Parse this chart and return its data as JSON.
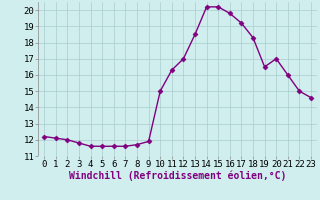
{
  "x": [
    0,
    1,
    2,
    3,
    4,
    5,
    6,
    7,
    8,
    9,
    10,
    11,
    12,
    13,
    14,
    15,
    16,
    17,
    18,
    19,
    20,
    21,
    22,
    23
  ],
  "y": [
    12.2,
    12.1,
    12.0,
    11.8,
    11.6,
    11.6,
    11.6,
    11.6,
    11.7,
    11.9,
    15.0,
    16.3,
    17.0,
    18.5,
    20.2,
    20.2,
    19.8,
    19.2,
    18.3,
    16.5,
    17.0,
    16.0,
    15.0,
    14.6
  ],
  "line_color": "#800080",
  "marker": "D",
  "marker_size": 2.5,
  "xlabel": "Windchill (Refroidissement éolien,°C)",
  "xlabel_fontsize": 7,
  "ylim": [
    11,
    20.5
  ],
  "xlim": [
    -0.5,
    23.5
  ],
  "yticks": [
    11,
    12,
    13,
    14,
    15,
    16,
    17,
    18,
    19,
    20
  ],
  "xticks": [
    0,
    1,
    2,
    3,
    4,
    5,
    6,
    7,
    8,
    9,
    10,
    11,
    12,
    13,
    14,
    15,
    16,
    17,
    18,
    19,
    20,
    21,
    22,
    23
  ],
  "grid_color": "#aacccc",
  "background_color": "#d0eeee",
  "tick_fontsize": 6.5,
  "linewidth": 1.0
}
